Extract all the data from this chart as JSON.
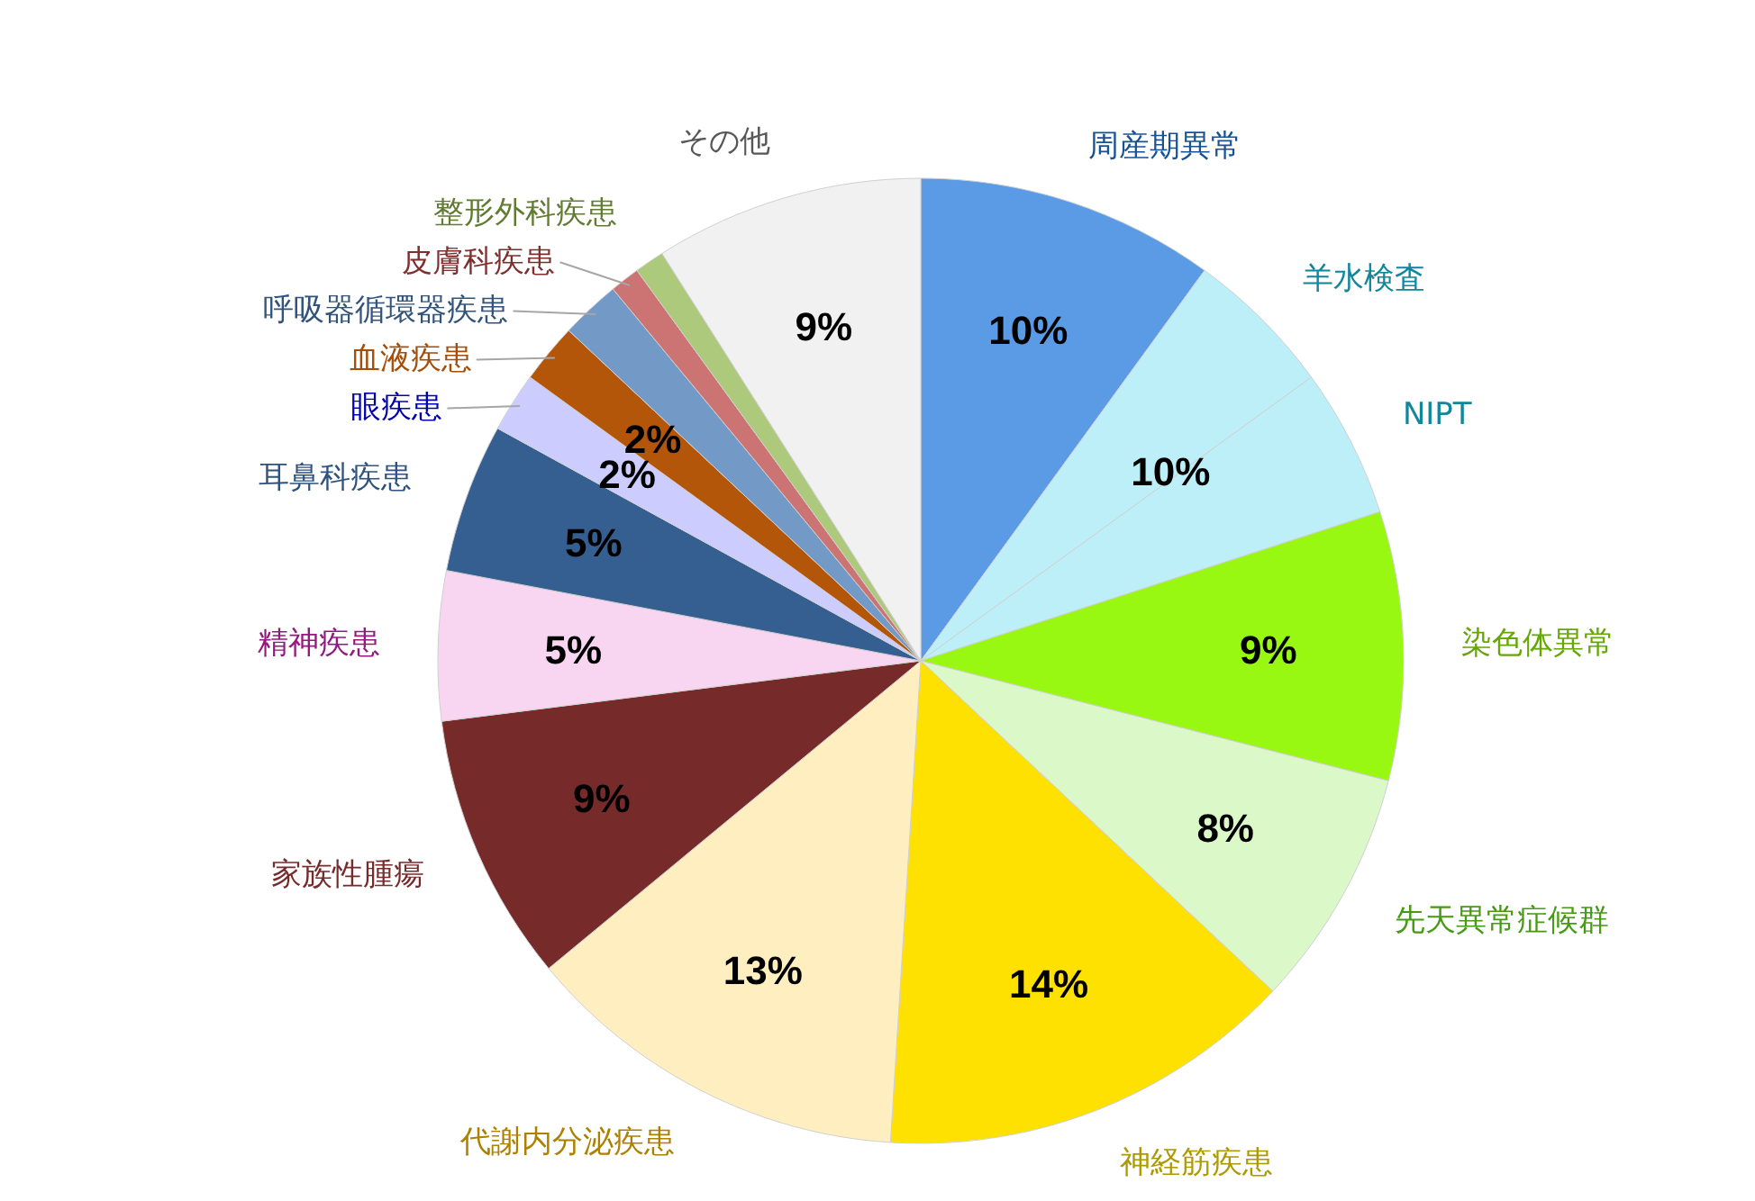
{
  "chart_data": {
    "type": "pie",
    "categories": [
      "周産期異常",
      "羊水検査",
      "NIPT",
      "染色体異常",
      "先天異常症候群",
      "神経筋疾患",
      "代謝内分泌疾患",
      "家族性腫瘍",
      "精神疾患",
      "耳鼻科疾患",
      "眼疾患",
      "血液疾患",
      "呼吸器循環器疾患",
      "皮膚科疾患",
      "整形外科疾患",
      "その他"
    ],
    "values": [
      10,
      5,
      5,
      9,
      8,
      14,
      13,
      9,
      5,
      5,
      2,
      2,
      2,
      1,
      1,
      9
    ],
    "colors": [
      "#5b9be6",
      "#bdeff8",
      "#bdeff8",
      "#99f812",
      "#daf8c8",
      "#ffe100",
      "#ffefc0",
      "#762a2a",
      "#f8d6f2",
      "#365f91",
      "#ccccff",
      "#b4560a",
      "#7399c6",
      "#cc7373",
      "#adc97b",
      "#f1f1f1"
    ],
    "value_labels": [
      "10%",
      null,
      null,
      "9%",
      "8%",
      "14%",
      "13%",
      "9%",
      "5%",
      "5%",
      "2%",
      "2%",
      null,
      null,
      null,
      "9%"
    ],
    "annotations": [
      "10%"
    ]
  }
}
